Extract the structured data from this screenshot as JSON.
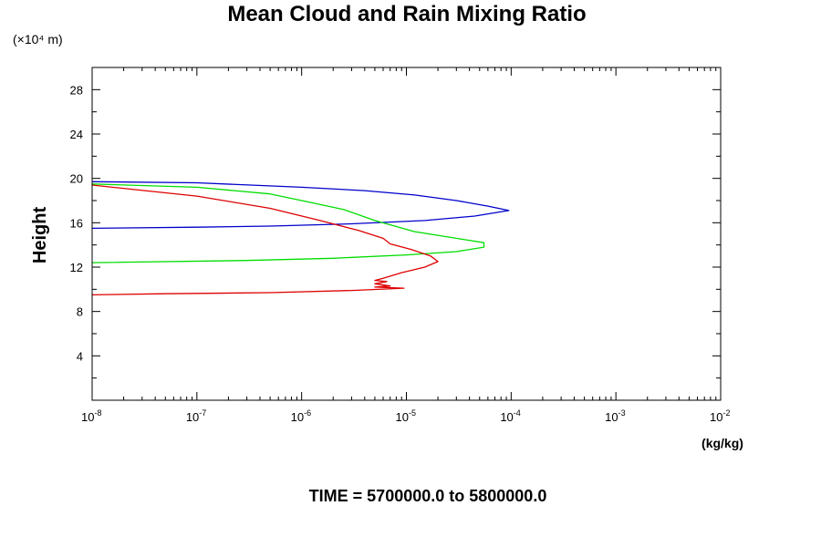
{
  "chart_data": {
    "type": "line",
    "title": "Mean Cloud and Rain Mixing Ratio",
    "ylabel": "Height",
    "y_unit": "(×10⁴ m)",
    "xlabel": "(kg/kg)",
    "footer": "TIME = 5700000.0 to 5800000.0",
    "x_scale": "log",
    "xlim": [
      1e-08,
      0.01
    ],
    "ylim": [
      0,
      30
    ],
    "x_ticks": [
      {
        "base": "10",
        "exp": "-8"
      },
      {
        "base": "10",
        "exp": "-7"
      },
      {
        "base": "10",
        "exp": "-6"
      },
      {
        "base": "10",
        "exp": "-5"
      },
      {
        "base": "10",
        "exp": "-4"
      },
      {
        "base": "10",
        "exp": "-3"
      },
      {
        "base": "10",
        "exp": "-2"
      }
    ],
    "y_ticks": [
      "4",
      "8",
      "12",
      "16",
      "20",
      "24",
      "28"
    ],
    "grid": false,
    "legend": false,
    "series": [
      {
        "color": "#0000cc",
        "points": [
          [
            1e-08,
            19.7
          ],
          [
            1e-07,
            19.6
          ],
          [
            1e-06,
            19.2
          ],
          [
            4e-06,
            18.9
          ],
          [
            1.2e-05,
            18.5
          ],
          [
            3e-05,
            18.0
          ],
          [
            6e-05,
            17.5
          ],
          [
            9.5e-05,
            17.1
          ],
          [
            4.5e-05,
            16.6
          ],
          [
            1.5e-05,
            16.2
          ],
          [
            3e-06,
            15.9
          ],
          [
            5e-07,
            15.7
          ],
          [
            1e-07,
            15.6
          ],
          [
            1e-08,
            15.5
          ]
        ]
      },
      {
        "color": "#00dd00",
        "points": [
          [
            1e-08,
            19.5
          ],
          [
            1e-07,
            19.2
          ],
          [
            5e-07,
            18.6
          ],
          [
            1e-06,
            18.0
          ],
          [
            2.5e-06,
            17.2
          ],
          [
            5e-06,
            16.2
          ],
          [
            1.2e-05,
            15.2
          ],
          [
            3e-05,
            14.6
          ],
          [
            5.5e-05,
            14.2
          ],
          [
            5.5e-05,
            13.8
          ],
          [
            3e-05,
            13.4
          ],
          [
            1e-05,
            13.1
          ],
          [
            2e-06,
            12.8
          ],
          [
            3e-07,
            12.6
          ],
          [
            1e-08,
            12.4
          ]
        ]
      },
      {
        "color": "#dd0000",
        "points": [
          [
            1e-08,
            19.4
          ],
          [
            1e-07,
            18.4
          ],
          [
            5e-07,
            17.3
          ],
          [
            1.5e-06,
            16.2
          ],
          [
            3.5e-06,
            15.3
          ],
          [
            6e-06,
            14.6
          ],
          [
            7e-06,
            14.1
          ],
          [
            1.1e-05,
            13.6
          ],
          [
            1.7e-05,
            13.0
          ],
          [
            2e-05,
            12.5
          ],
          [
            1.5e-05,
            12.0
          ],
          [
            9e-06,
            11.5
          ],
          [
            6e-06,
            11.0
          ],
          [
            5e-06,
            10.8
          ],
          [
            6.5e-06,
            10.7
          ],
          [
            5e-06,
            10.5
          ],
          [
            7e-06,
            10.3
          ],
          [
            5e-06,
            10.2
          ],
          [
            9.5e-06,
            10.1
          ],
          [
            3e-06,
            9.9
          ],
          [
            5e-07,
            9.7
          ],
          [
            5e-08,
            9.6
          ],
          [
            1e-08,
            9.5
          ]
        ]
      }
    ]
  }
}
